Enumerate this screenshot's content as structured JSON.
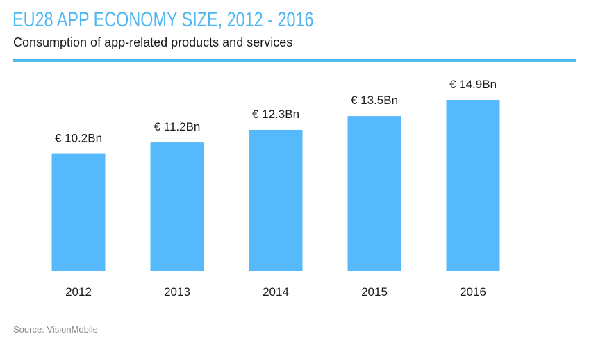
{
  "header": {
    "title": "EU28 APP ECONOMY SIZE, 2012 - 2016",
    "subtitle": "Consumption of app-related products and services"
  },
  "footer": {
    "source": "Source: VisionMobile"
  },
  "colors": {
    "accent": "#4fb7f2",
    "bar": "#55b9fb"
  },
  "chart_data": {
    "type": "bar",
    "title": "EU28 APP ECONOMY SIZE, 2012 - 2016",
    "subtitle": "Consumption of app-related products and services",
    "xlabel": "",
    "ylabel": "",
    "categories": [
      "2012",
      "2013",
      "2014",
      "2015",
      "2016"
    ],
    "values": [
      10.2,
      11.2,
      12.3,
      13.5,
      14.9
    ],
    "value_labels": [
      "€ 10.2Bn",
      "€ 11.2Bn",
      "€ 12.3Bn",
      "€ 13.5Bn",
      "€ 14.9Bn"
    ],
    "ylim": [
      0,
      14.9
    ],
    "grid": false,
    "legend": "none"
  }
}
